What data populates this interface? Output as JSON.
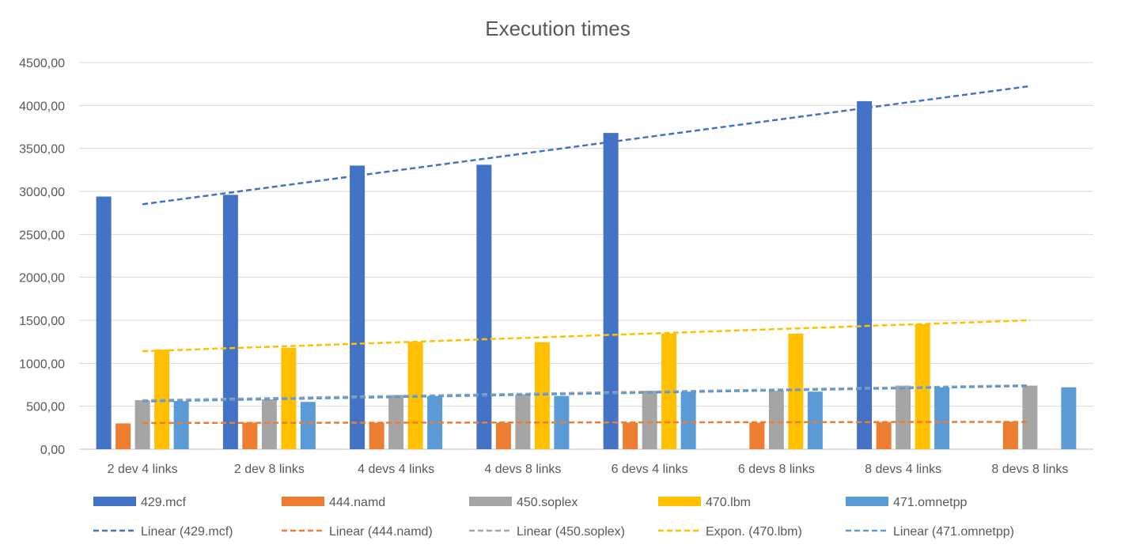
{
  "chart_data": {
    "type": "bar",
    "title": "Execution times",
    "xlabel": "",
    "ylabel": "",
    "ylim": [
      0,
      4500
    ],
    "yticks": [
      0,
      500,
      1000,
      1500,
      2000,
      2500,
      3000,
      3500,
      4000,
      4500
    ],
    "ytick_labels": [
      "0,00",
      "500,00",
      "1000,00",
      "1500,00",
      "2000,00",
      "2500,00",
      "3000,00",
      "3500,00",
      "4000,00",
      "4500,00"
    ],
    "grid": "horizontal",
    "legend_position": "bottom",
    "categories": [
      "2 dev 4 links",
      "2 dev 8 links",
      "4 devs 4 links",
      "4 devs 8 links",
      "6 devs 4 links",
      "6 devs 8 links",
      "8 devs 4 links",
      "8 devs 8 links"
    ],
    "series": [
      {
        "name": "429.mcf",
        "color": "#4472C4",
        "values": [
          2940,
          2960,
          3300,
          3310,
          3680,
          null,
          4050,
          null
        ]
      },
      {
        "name": "444.namd",
        "color": "#ED7D31",
        "values": [
          300,
          310,
          310,
          310,
          310,
          310,
          315,
          320
        ]
      },
      {
        "name": "450.soplex",
        "color": "#A5A5A5",
        "values": [
          570,
          580,
          630,
          640,
          680,
          680,
          740,
          740
        ]
      },
      {
        "name": "470.lbm",
        "color": "#FFC000",
        "values": [
          1160,
          1180,
          1250,
          1245,
          1345,
          1345,
          1455,
          null
        ]
      },
      {
        "name": "471.omnetpp",
        "color": "#5B9BD5",
        "values": [
          560,
          550,
          620,
          620,
          670,
          670,
          720,
          720
        ]
      }
    ],
    "trendlines": [
      {
        "name": "Linear (429.mcf)",
        "color": "#4472C4",
        "start": 2850,
        "end": 4225
      },
      {
        "name": "Linear (444.namd)",
        "color": "#ED7D31",
        "start": 305,
        "end": 318
      },
      {
        "name": "Linear (450.soplex)",
        "color": "#A5A5A5",
        "start": 570,
        "end": 745
      },
      {
        "name": "Expon. (470.lbm)",
        "color": "#FFC000",
        "start": 1140,
        "end": 1500
      },
      {
        "name": "Linear (471.omnetpp)",
        "color": "#5B9BD5",
        "start": 555,
        "end": 735
      }
    ]
  }
}
